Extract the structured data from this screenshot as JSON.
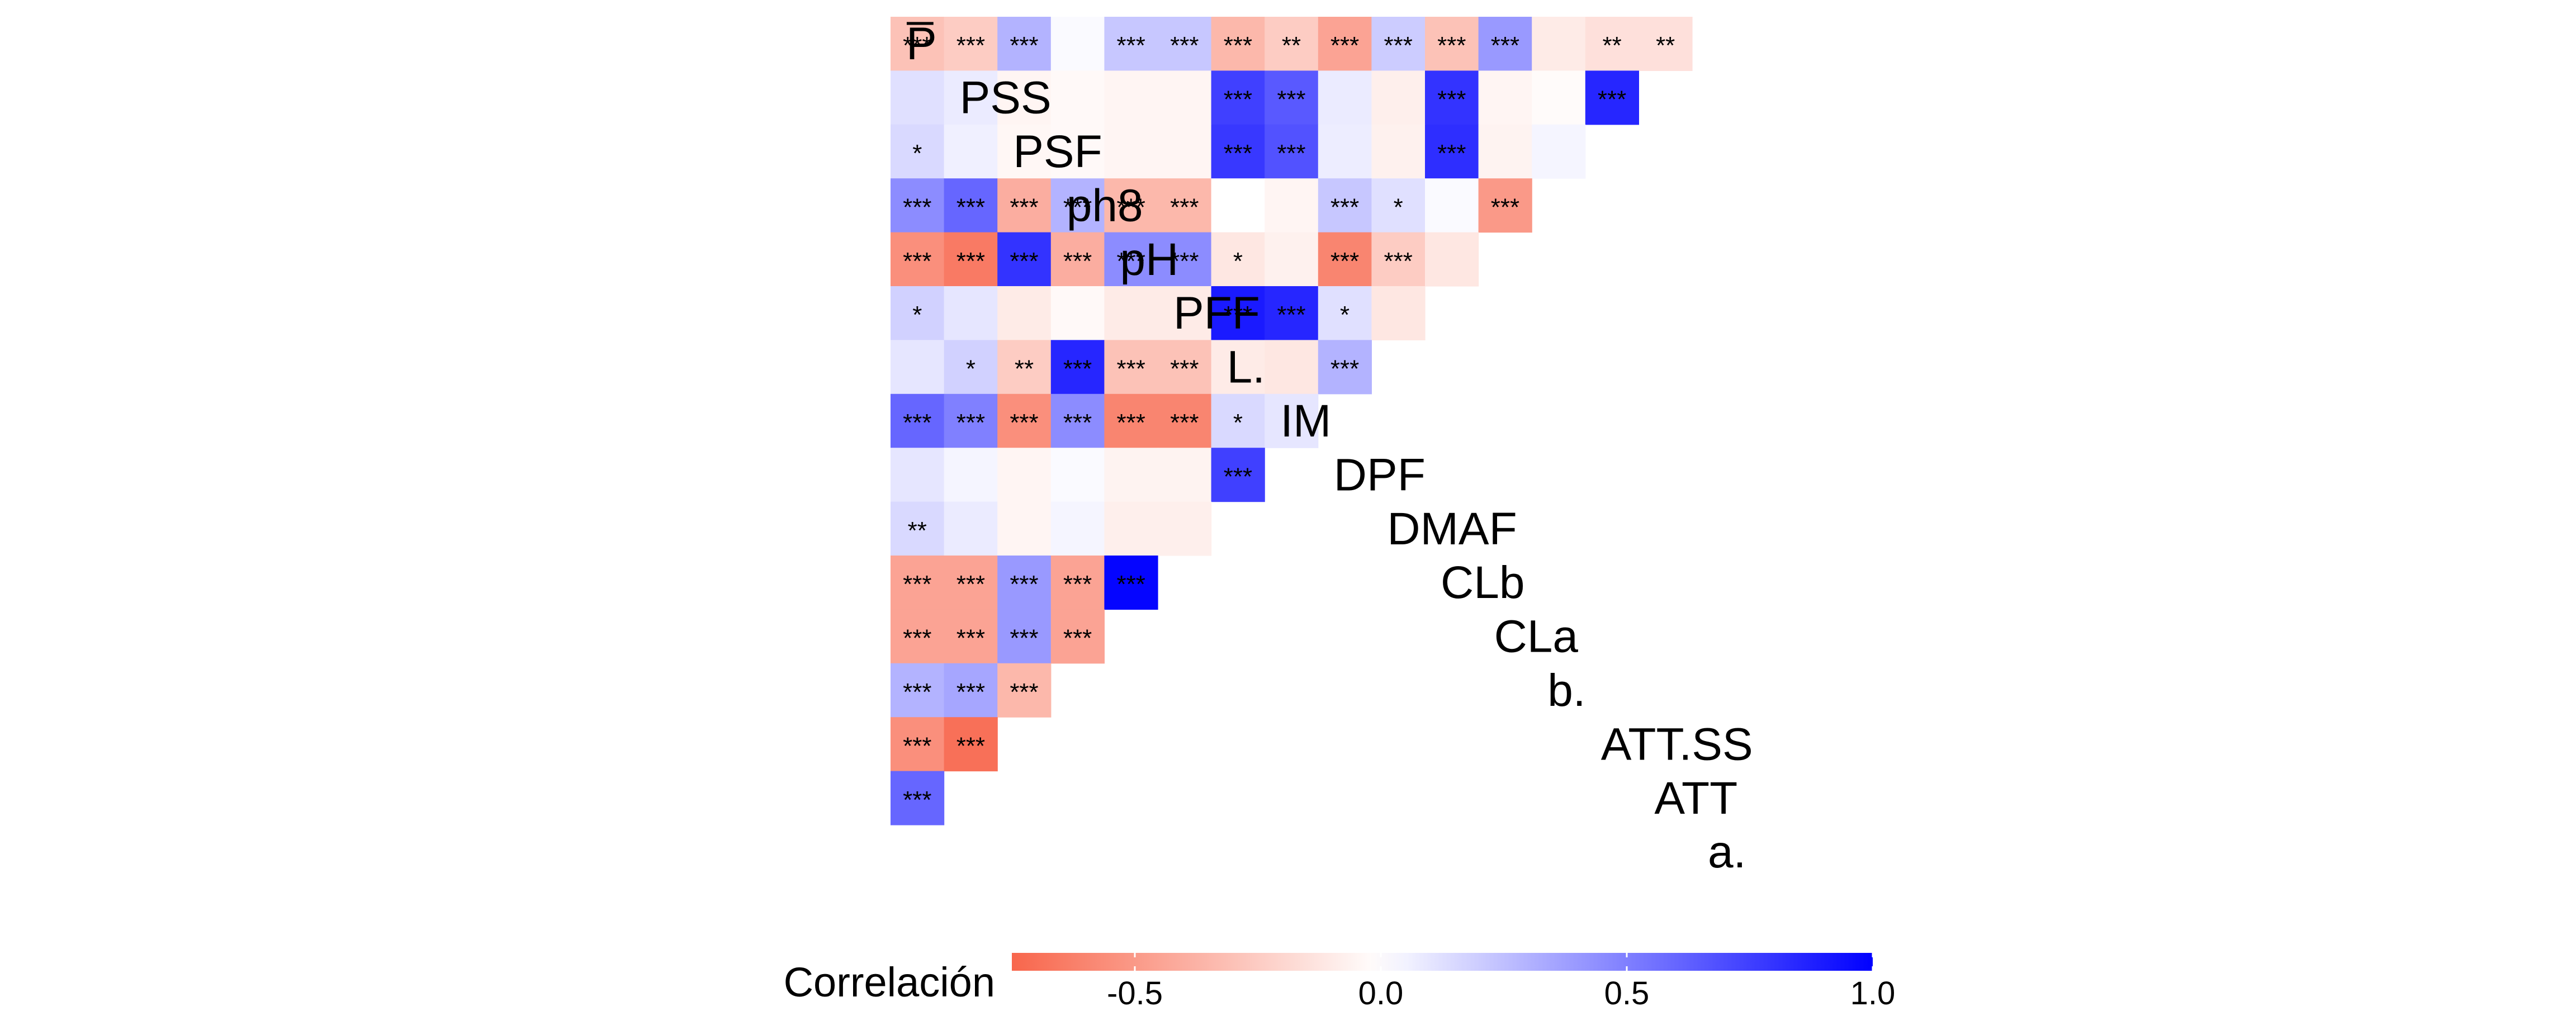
{
  "chart_data": {
    "type": "heatmap",
    "subtype": "lower-triangle correlation matrix (ggcorrplot style)",
    "variables": [
      "a.",
      "ATT",
      "ATT.SS",
      "b.",
      "CLa",
      "CLb",
      "DMAF",
      "DPF",
      "IM",
      "L.",
      "PFF",
      "pH",
      "ph8",
      "PSF",
      "PSS",
      "P̅"
    ],
    "diagonal_labels": [
      "a.",
      "ATT",
      "ATT.SS",
      "b.",
      "CLa",
      "CLb",
      "DMAF",
      "DPF",
      "IM",
      "L.",
      "PFF",
      "pH",
      "ph8",
      "PSF",
      "PSS",
      "P̅"
    ],
    "value_scale": {
      "min": -0.75,
      "max": 1.0
    },
    "colors": {
      "negative": "#F8664C",
      "zero": "#FFFFFF",
      "positive": "#0000FF"
    },
    "rows": [
      {
        "variable": "P̅",
        "values": [
          -0.3,
          -0.25,
          0.3,
          0.02,
          0.22,
          0.22,
          -0.35,
          -0.25,
          -0.45,
          0.2,
          -0.3,
          0.4,
          -0.1,
          -0.15,
          -0.15
        ],
        "stars": [
          "***",
          "***",
          "***",
          "",
          "***",
          "***",
          "***",
          "**",
          "***",
          "***",
          "***",
          "***",
          "",
          "**",
          "**"
        ]
      },
      {
        "variable": "PSS",
        "values": [
          0.12,
          0.08,
          -0.05,
          -0.03,
          -0.05,
          -0.05,
          0.75,
          0.65,
          0.08,
          -0.08,
          0.8,
          -0.05,
          -0.02,
          0.85
        ],
        "stars": [
          "",
          "",
          "",
          "",
          "",
          "",
          "***",
          "***",
          "",
          "",
          "***",
          "",
          "",
          "***"
        ]
      },
      {
        "variable": "PSF",
        "values": [
          0.15,
          0.06,
          -0.04,
          -0.03,
          -0.05,
          -0.05,
          0.78,
          0.68,
          0.07,
          -0.07,
          0.82,
          -0.06,
          0.04
        ],
        "stars": [
          "*",
          "",
          "",
          "",
          "",
          "",
          "***",
          "***",
          "",
          "",
          "***",
          "",
          ""
        ]
      },
      {
        "variable": "ph8",
        "values": [
          0.45,
          0.6,
          -0.4,
          0.3,
          -0.35,
          -0.35,
          0.0,
          -0.05,
          0.22,
          0.12,
          0.02,
          -0.5
        ],
        "stars": [
          "***",
          "***",
          "***",
          "***",
          "***",
          "***",
          "",
          "",
          "***",
          "*",
          "",
          "***"
        ]
      },
      {
        "variable": "pH",
        "values": [
          -0.55,
          -0.65,
          0.8,
          -0.4,
          0.45,
          0.45,
          -0.12,
          -0.07,
          -0.6,
          -0.25,
          -0.12
        ],
        "stars": [
          "***",
          "***",
          "***",
          "***",
          "***",
          "***",
          "*",
          "",
          "***",
          "***",
          ""
        ]
      },
      {
        "variable": "PFF",
        "values": [
          0.18,
          0.1,
          -0.1,
          -0.03,
          -0.1,
          -0.1,
          0.9,
          0.85,
          0.12,
          -0.12
        ],
        "stars": [
          "*",
          "",
          "",
          "",
          "",
          "",
          "***",
          "***",
          "*",
          ""
        ]
      },
      {
        "variable": "L.",
        "values": [
          0.1,
          0.18,
          -0.25,
          0.85,
          -0.3,
          -0.3,
          -0.1,
          -0.12,
          0.3
        ],
        "stars": [
          "",
          "*",
          "**",
          "***",
          "***",
          "***",
          "",
          "",
          "***"
        ]
      },
      {
        "variable": "IM",
        "values": [
          0.6,
          0.5,
          -0.55,
          0.45,
          -0.6,
          -0.6,
          0.15,
          0.1
        ],
        "stars": [
          "***",
          "***",
          "***",
          "***",
          "***",
          "***",
          "*",
          ""
        ]
      },
      {
        "variable": "DPF",
        "values": [
          0.1,
          0.04,
          -0.05,
          0.02,
          -0.06,
          -0.06,
          0.75
        ],
        "stars": [
          "",
          "",
          "",
          "",
          "",
          "",
          "***"
        ]
      },
      {
        "variable": "DMAF",
        "values": [
          0.15,
          0.08,
          -0.05,
          0.04,
          -0.08,
          -0.08
        ],
        "stars": [
          "**",
          "",
          "",
          "",
          "",
          ""
        ]
      },
      {
        "variable": "CLb",
        "values": [
          -0.45,
          -0.45,
          0.4,
          -0.45,
          0.98
        ],
        "stars": [
          "***",
          "***",
          "***",
          "***",
          "***"
        ]
      },
      {
        "variable": "CLa",
        "values": [
          -0.45,
          -0.45,
          0.4,
          -0.45
        ],
        "stars": [
          "***",
          "***",
          "***",
          "***"
        ]
      },
      {
        "variable": "b.",
        "values": [
          0.3,
          0.35,
          -0.35
        ],
        "stars": [
          "***",
          "***",
          "***"
        ]
      },
      {
        "variable": "ATT.SS",
        "values": [
          -0.55,
          -0.7
        ],
        "stars": [
          "***",
          "***"
        ]
      },
      {
        "variable": "ATT",
        "values": [
          0.6
        ],
        "stars": [
          "***"
        ]
      }
    ],
    "legend": {
      "title": "Correlación",
      "ticks": [
        -0.5,
        0.0,
        0.5,
        1.0
      ],
      "tick_labels": [
        "-0.5",
        "0.0",
        "0.5",
        "1.0"
      ],
      "position": "bottom"
    }
  }
}
